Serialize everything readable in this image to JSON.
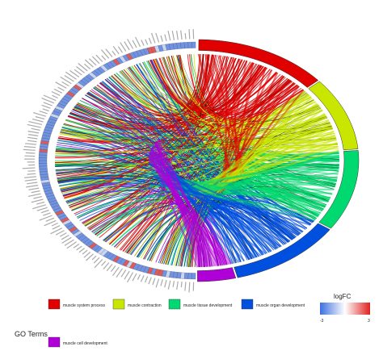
{
  "chart_data": {
    "type": "chord",
    "legend_title": "GO Terms",
    "go_terms": [
      {
        "name": "muscle system process",
        "color": "#e00000",
        "share": 0.135
      },
      {
        "name": "muscle contraction",
        "color": "#c8e600",
        "share": 0.1
      },
      {
        "name": "muscle tissue development",
        "color": "#00d970",
        "share": 0.11
      },
      {
        "name": "muscle organ development",
        "color": "#0050e0",
        "share": 0.115
      },
      {
        "name": "muscle cell development",
        "color": "#b000d8",
        "share": 0.04
      }
    ],
    "gene_arc_share": 0.5,
    "logfc_legend": {
      "title": "logFC",
      "min_label": "-3",
      "max_label": "3",
      "low_color": "#3c6fe0",
      "mid_color": "#ffffff",
      "high_color": "#e02020"
    }
  }
}
